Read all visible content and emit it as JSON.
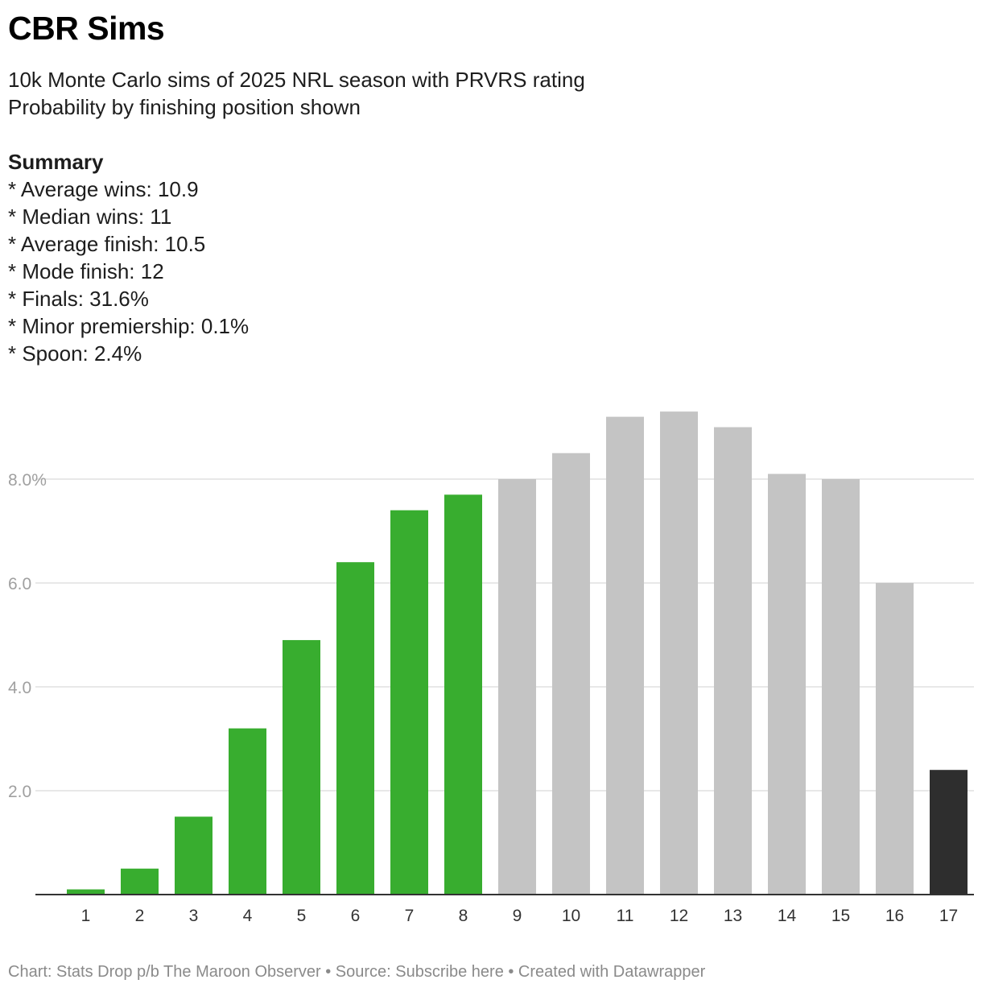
{
  "title": "CBR Sims",
  "subtitle": [
    "10k Monte Carlo sims of 2025 NRL season with PRVRS rating",
    "Probability by finishing position shown"
  ],
  "summary": {
    "heading": "Summary",
    "lines": [
      "* Average wins: 10.9",
      "* Median wins: 11",
      "* Average finish: 10.5",
      "* Mode finish: 12",
      "* Finals: 31.6%",
      "* Minor premiership: 0.1%",
      "* Spoon: 2.4%"
    ]
  },
  "footer": "Chart: Stats Drop p/b The Maroon Observer • Source: Subscribe here • Created with Datawrapper",
  "colors": {
    "finals": "#38ad2f",
    "other": "#c4c4c4",
    "spoon": "#2e2e2e",
    "grid": "#e1e1e1",
    "baseline": "#333333"
  },
  "chart_data": {
    "type": "bar",
    "categories": [
      "1",
      "2",
      "3",
      "4",
      "5",
      "6",
      "7",
      "8",
      "9",
      "10",
      "11",
      "12",
      "13",
      "14",
      "15",
      "16",
      "17"
    ],
    "values": [
      0.1,
      0.5,
      1.5,
      3.2,
      4.9,
      6.4,
      7.4,
      7.7,
      8.0,
      8.5,
      9.2,
      9.3,
      9.0,
      8.1,
      8.0,
      6.0,
      2.4
    ],
    "groups": [
      "finals",
      "finals",
      "finals",
      "finals",
      "finals",
      "finals",
      "finals",
      "finals",
      "other",
      "other",
      "other",
      "other",
      "other",
      "other",
      "other",
      "other",
      "spoon"
    ],
    "yticks": [
      2,
      4,
      6,
      8
    ],
    "ytick_labels": [
      "2.0",
      "4.0",
      "6.0",
      "8.0%"
    ],
    "ylim": [
      0,
      9.3
    ],
    "grid": true,
    "legend": "none",
    "xlabel": "",
    "ylabel": ""
  }
}
